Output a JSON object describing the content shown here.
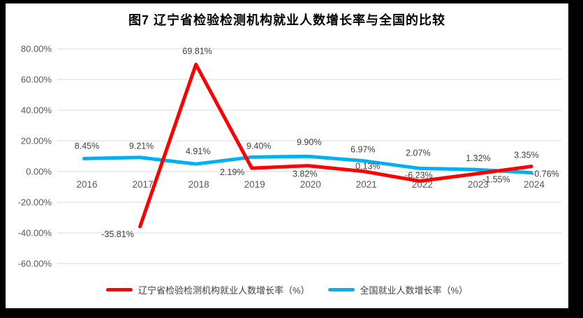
{
  "frame": {
    "border_color": "#000000",
    "background": "#ffffff"
  },
  "chart_data": {
    "type": "line",
    "title": "图7  辽宁省检验检测机构就业人数增长率与全国的比较",
    "categories": [
      "2016",
      "2017",
      "2018",
      "2019",
      "2020",
      "2021",
      "2022",
      "2023",
      "2024"
    ],
    "series": [
      {
        "name": "辽宁省检验检测机构就业人数增长率（%）",
        "color": "#FF0000",
        "values": [
          null,
          -35.81,
          69.81,
          2.19,
          3.82,
          0.13,
          -6.23,
          -1.55,
          3.35
        ],
        "data_labels": [
          "",
          "-35.81%",
          "69.81%",
          "2.19%",
          "3.82%",
          "0.13%",
          "-6.23%",
          "-1.55%",
          "3.35%"
        ]
      },
      {
        "name": "全国就业人数增长率（%）",
        "color": "#00B0F0",
        "values": [
          8.45,
          9.21,
          4.91,
          9.4,
          9.9,
          6.97,
          2.07,
          1.32,
          -0.76
        ],
        "data_labels": [
          "8.45%",
          "9.21%",
          "4.91%",
          "9.40%",
          "9.90%",
          "6.97%",
          "2.07%",
          "1.32%",
          "-0.76%"
        ]
      }
    ],
    "y_axis": {
      "tick_labels": [
        "80.00%",
        "60.00%",
        "40.00%",
        "20.00%",
        "0.00%",
        "-20.00%",
        "-40.00%",
        "-60.00%"
      ],
      "tick_values": [
        80,
        60,
        40,
        20,
        0,
        -20,
        -40,
        -60
      ],
      "min": -60,
      "max": 80
    },
    "grid": true,
    "legend_position": "bottom",
    "style_hints": {
      "grid_color": "#D9D9D9",
      "axis_text_color": "#595959",
      "data_label_color": "#404040",
      "line_width": 5,
      "label_offsets": {
        "series0": [
          null,
          [
            -32,
            15
          ],
          [
            2,
            -15
          ],
          [
            -28,
            10
          ],
          [
            -4,
            16
          ],
          [
            6,
            -3
          ],
          [
            -1,
            -4
          ],
          [
            30,
            12
          ],
          [
            -7,
            -12
          ]
        ],
        "series1": [
          [
            4,
            -14
          ],
          [
            2,
            -12
          ],
          [
            3,
            -14
          ],
          [
            10,
            -12
          ],
          [
            2,
            -16
          ],
          [
            -1,
            -12
          ],
          [
            -2,
            -18
          ],
          [
            4,
            -12
          ],
          [
            20,
            6
          ]
        ]
      }
    }
  }
}
